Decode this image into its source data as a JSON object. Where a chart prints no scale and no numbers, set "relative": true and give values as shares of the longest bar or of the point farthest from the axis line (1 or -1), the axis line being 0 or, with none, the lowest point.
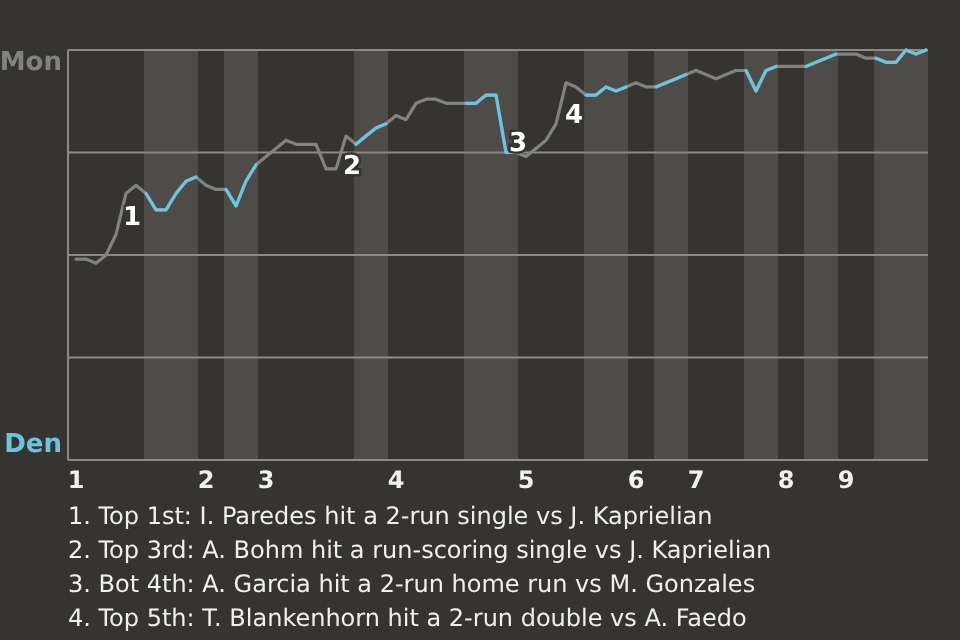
{
  "chart_data": {
    "type": "line",
    "relative": true,
    "categories": [
      "1",
      null,
      null,
      null,
      null,
      null,
      null,
      null,
      null,
      null,
      null,
      null,
      null,
      "2",
      null,
      null,
      null,
      null,
      null,
      "3",
      null,
      null,
      null,
      null,
      null,
      null,
      null,
      null,
      null,
      null,
      null,
      null,
      "4",
      null,
      null,
      null,
      null,
      null,
      null,
      null,
      null,
      null,
      null,
      null,
      null,
      "5",
      null,
      null,
      null,
      null,
      null,
      null,
      null,
      null,
      null,
      null,
      "6",
      null,
      null,
      null,
      null,
      null,
      "7",
      null,
      null,
      null,
      null,
      null,
      null,
      null,
      null,
      "8",
      null,
      null,
      null,
      null,
      null,
      "9",
      null,
      null,
      null,
      null,
      null,
      null,
      null,
      null
    ],
    "grid": "y",
    "marker": "none",
    "line_style": "solid",
    "series": [
      {
        "color": "#828282",
        "values": [
          0.49,
          0.49,
          0.48,
          0.5,
          0.55,
          0.65,
          0.67,
          0.65,
          0.61,
          0.61,
          0.65,
          0.68,
          0.69,
          0.67,
          0.66,
          0.66,
          0.62,
          0.68,
          0.72,
          0.74,
          0.76,
          0.78,
          0.77,
          0.77,
          0.77,
          0.71,
          0.71,
          0.79,
          0.77,
          0.79,
          0.81,
          0.82,
          0.84,
          0.83,
          0.87,
          0.88,
          0.88,
          0.87,
          0.87,
          0.87,
          0.87,
          0.89,
          0.89,
          0.75,
          0.75,
          0.74,
          0.76,
          0.78,
          0.82,
          0.92,
          0.91,
          0.89,
          0.89,
          0.91,
          0.9,
          0.91,
          0.92,
          0.91,
          0.91,
          0.92,
          0.93,
          0.94,
          0.95,
          0.94,
          0.93,
          0.94,
          0.95,
          0.95,
          0.9,
          0.95,
          0.96,
          0.96,
          0.96,
          0.96,
          0.97,
          0.98,
          0.99,
          0.99,
          0.99,
          0.98,
          0.98,
          0.97,
          0.97,
          1,
          0.99,
          1
        ]
      },
      {
        "color": "#6cc4df",
        "values": [
          null,
          null,
          null,
          null,
          null,
          null,
          null,
          0.65,
          0.61,
          0.61,
          0.65,
          0.68,
          0.69,
          null,
          null,
          0.66,
          0.62,
          0.68,
          0.72,
          null,
          null,
          null,
          null,
          null,
          null,
          null,
          null,
          null,
          0.77,
          0.79,
          0.81,
          0.82,
          null,
          null,
          null,
          null,
          null,
          null,
          null,
          0.87,
          0.87,
          0.89,
          0.89,
          0.75,
          0.75,
          null,
          null,
          null,
          null,
          null,
          null,
          0.89,
          0.89,
          0.91,
          0.9,
          0.91,
          null,
          null,
          0.91,
          0.92,
          0.93,
          0.94,
          null,
          null,
          null,
          null,
          null,
          0.95,
          0.9,
          0.95,
          0.96,
          null,
          null,
          0.96,
          0.97,
          0.98,
          0.99,
          null,
          null,
          null,
          0.98,
          0.97,
          0.97,
          1,
          0.99,
          1
        ]
      }
    ],
    "annotations": [
      "Mon",
      "Den",
      "1",
      "2",
      "3",
      "4",
      "1. Top 1st: I. Paredes hit a 2-run single vs J. Kaprielian",
      "2. Top 3rd: A. Bohm hit a run-scoring single vs J. Kaprielian",
      "3. Bot 4th: A. Garcia hit a 2-run home run vs M. Gonzales",
      "4. Top 5th: T. Blankenhorn hit a 2-run double vs A. Faedo"
    ]
  }
}
